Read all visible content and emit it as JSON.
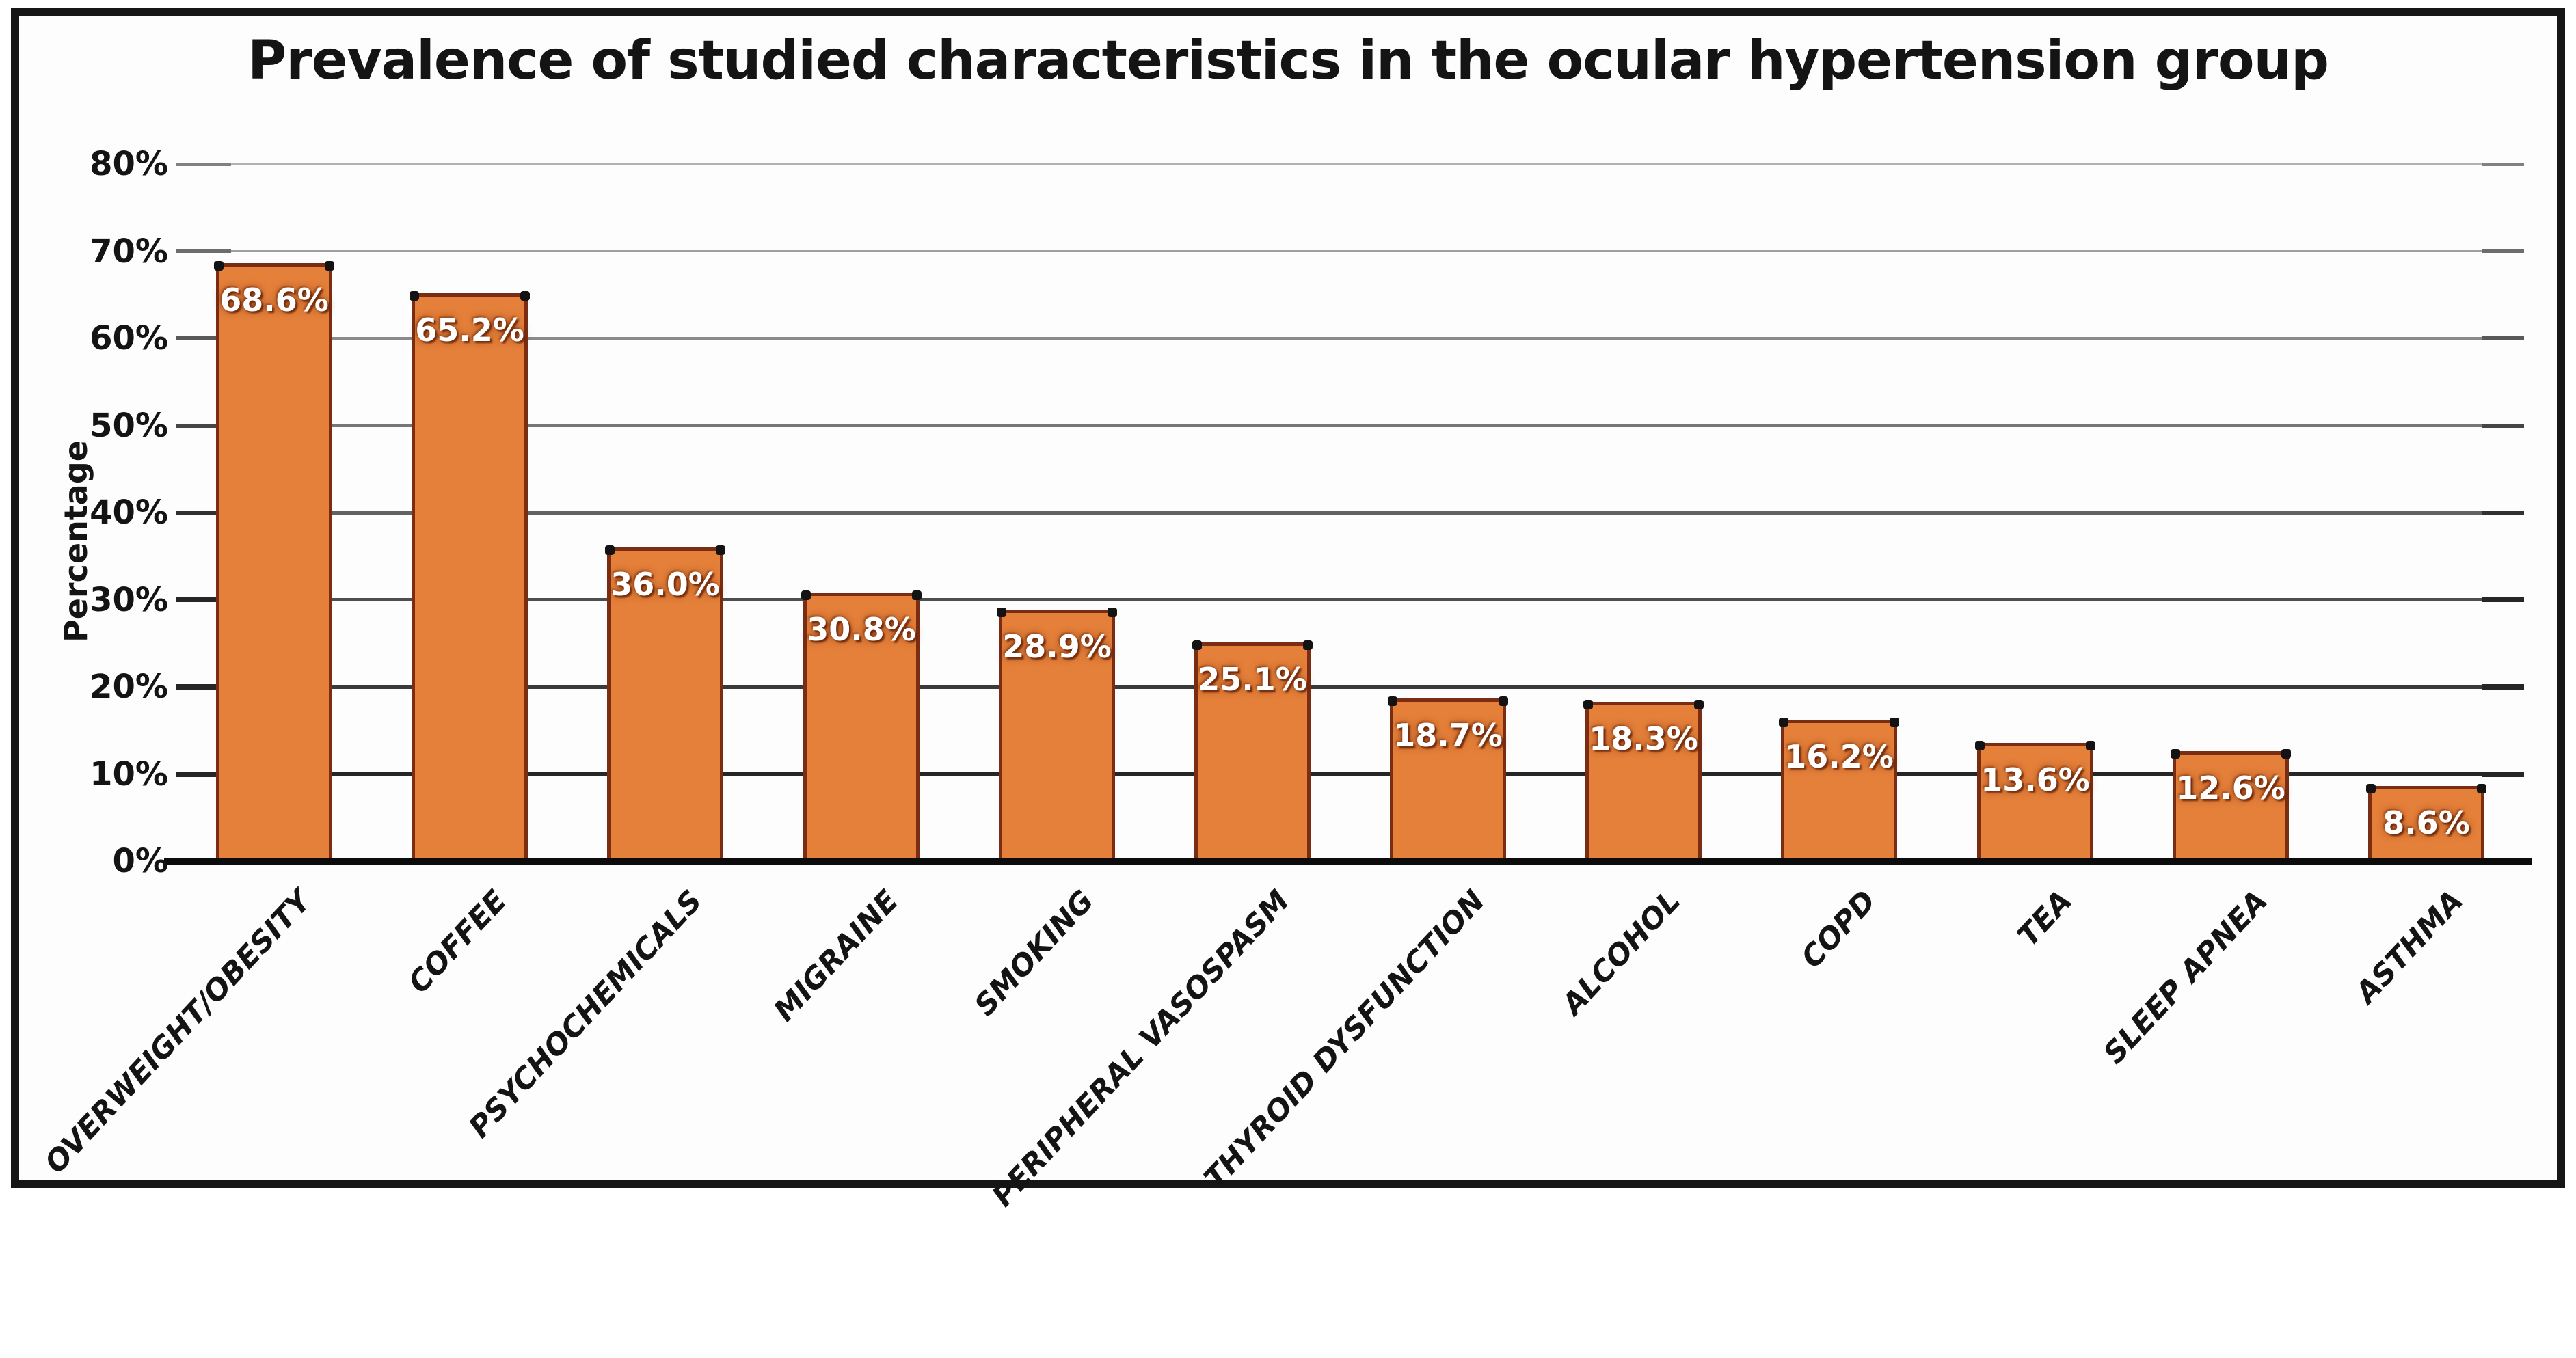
{
  "chart_data": {
    "type": "bar",
    "title": "Prevalence of studied characteristics in the ocular hypertension group",
    "xlabel": "",
    "ylabel": "Percentage",
    "categories": [
      "OVERWEIGHT/OBESITY",
      "COFFEE",
      "PSYCHOCHEMICALS",
      "MIGRAINE",
      "SMOKING",
      "PERIPHERAL VASOSPASM",
      "THYROID DYSFUNCTION",
      "ALCOHOL",
      "COPD",
      "TEA",
      "SLEEP APNEA",
      "ASTHMA"
    ],
    "values": [
      68.6,
      65.2,
      36.0,
      30.8,
      28.9,
      25.1,
      18.7,
      18.3,
      16.2,
      13.6,
      12.6,
      8.6
    ],
    "value_labels": [
      "68.6%",
      "65.2%",
      "36.0%",
      "30.8%",
      "28.9%",
      "25.1%",
      "18.7%",
      "18.3%",
      "16.2%",
      "13.6%",
      "12.6%",
      "8.6%"
    ],
    "ylim": [
      0,
      80
    ],
    "yticks": [
      {
        "value": 80,
        "label": "80%"
      },
      {
        "value": 70,
        "label": "70%"
      },
      {
        "value": 60,
        "label": "60%"
      },
      {
        "value": 50,
        "label": "50%"
      },
      {
        "value": 40,
        "label": "40%"
      },
      {
        "value": 30,
        "label": "30%"
      },
      {
        "value": 20,
        "label": "20%"
      },
      {
        "value": 10,
        "label": "10%"
      },
      {
        "value": 0,
        "label": "0%"
      }
    ],
    "grid": true,
    "legend_position": "none",
    "colors": {
      "bar_fill": "#E5803A",
      "bar_border": "#7A2D12",
      "value_text": "#FFFFFF",
      "axis_text": "#141414",
      "axis_line": "#0C0C0C",
      "frame_border": "#161616",
      "background": "#FDFDFD",
      "gridline_light": "#B2B2B2",
      "gridline_dark": "#262626"
    }
  }
}
